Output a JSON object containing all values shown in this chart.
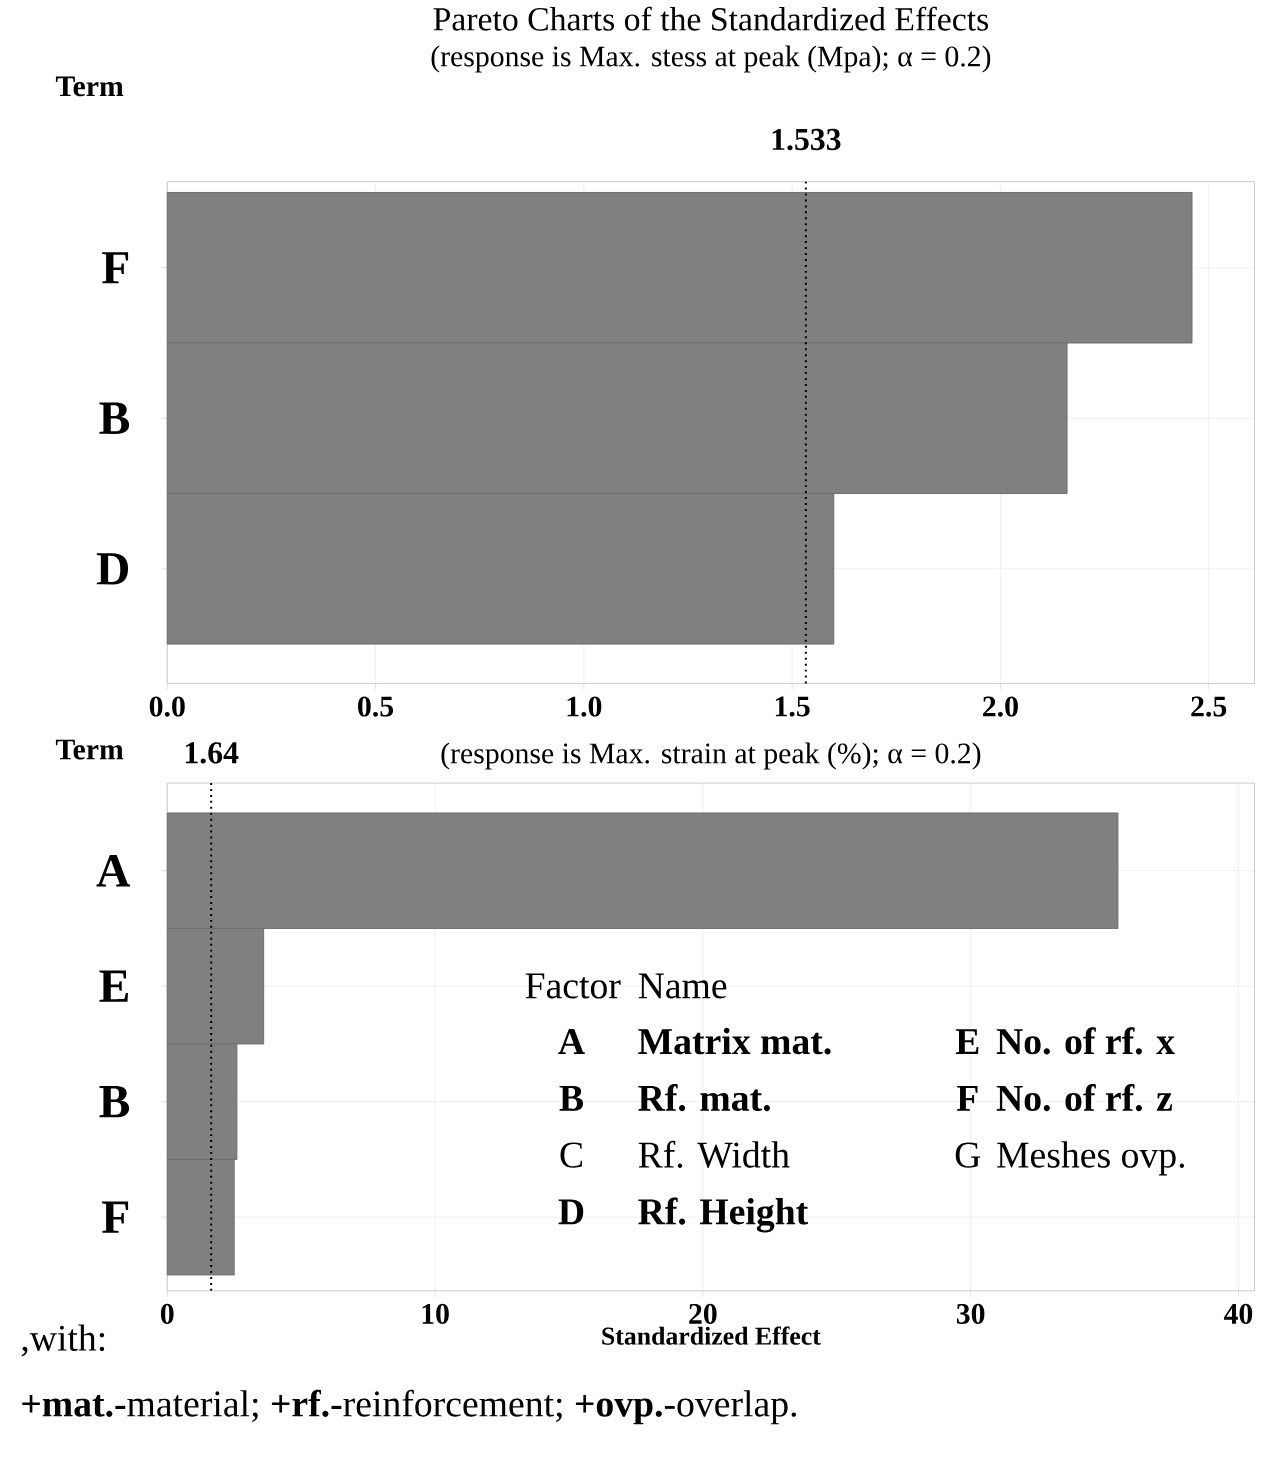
{
  "chart_data": [
    {
      "type": "bar",
      "orientation": "horizontal",
      "title": "Pareto Charts of the Standardized Effects",
      "subtitle": "(response is Max. stess at peak (Mpa); α = 0.2)",
      "ylabel": "Term",
      "categories": [
        "F",
        "B",
        "D"
      ],
      "values": [
        2.46,
        2.16,
        1.6
      ],
      "color": "#808080",
      "xlim": [
        0,
        2.61
      ],
      "xticks": [
        {
          "value": 0,
          "label": "0.0"
        },
        0.5,
        {
          "value": 1,
          "label": "1.0"
        },
        1.5,
        {
          "value": 2,
          "label": "2.0"
        },
        2.5
      ],
      "grid": true,
      "ref_lines": [
        {
          "axis": "x",
          "value": 1.533,
          "label": "1.533",
          "color": "#000000",
          "line_style": "dotted"
        }
      ]
    },
    {
      "type": "bar",
      "orientation": "horizontal",
      "subtitle": "(response is Max. strain at peak (%); α = 0.2)",
      "ylabel": "Term",
      "xlabel": "Standardized Effect",
      "categories": [
        "A",
        "E",
        "B",
        "F"
      ],
      "values": [
        35.5,
        3.6,
        2.6,
        2.5
      ],
      "color": "#808080",
      "xlim": [
        0,
        40.6
      ],
      "xticks": [
        0,
        10,
        20,
        30,
        40
      ],
      "grid": true,
      "ref_lines": [
        {
          "axis": "x",
          "value": 1.64,
          "label": "1.64",
          "color": "#000000",
          "line_style": "dotted"
        }
      ],
      "annotations": [
        "Factor",
        "Name",
        "**A**",
        "**Matrix mat.**",
        "**E**",
        "**No. of rf. x**",
        "**B**",
        "**Rf. mat.**",
        "**F**",
        "**No. of rf. z**",
        "C",
        "Rf. Width",
        "G",
        "Meshes ovp.",
        "**D**",
        "**Rf. Height**",
        ",with:",
        "**+mat.-**material; **+rf.-**reinforcement; **+ovp.**-overlap."
      ]
    }
  ]
}
